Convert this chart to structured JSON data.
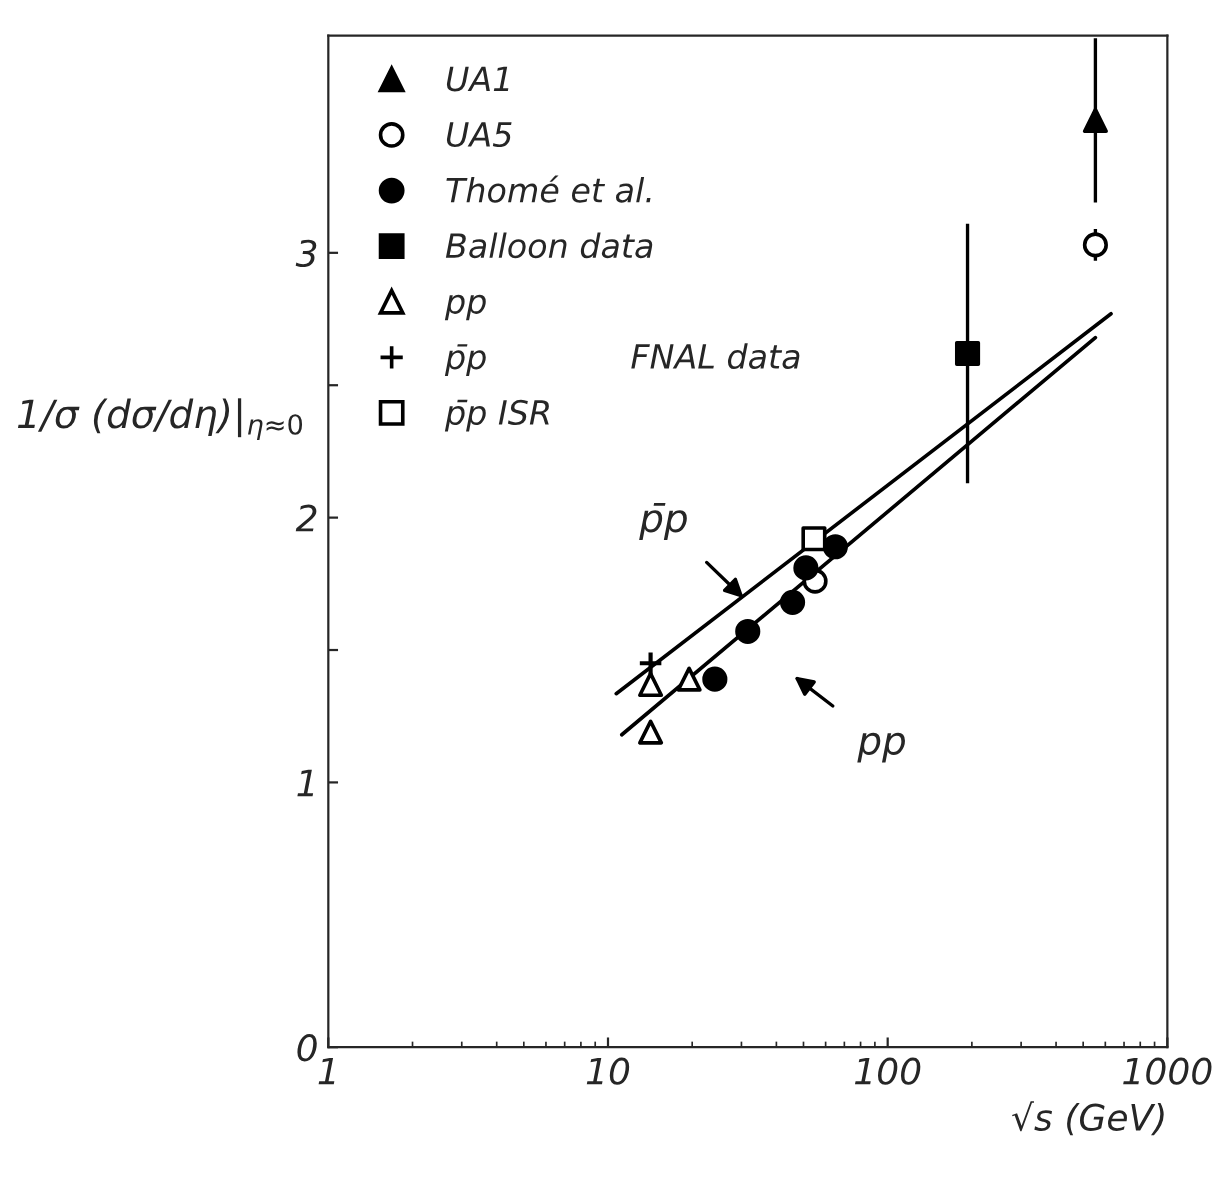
{
  "chart_data": {
    "type": "scatter",
    "xlabel": "√s (GeV)",
    "ylabel": "1/σ (dσ/dη)|$_{η≈0}$",
    "log": "x",
    "xlim": [
      1,
      1000
    ],
    "xticks": [
      1,
      10,
      100,
      1000
    ],
    "ylim": [
      0,
      3.82
    ],
    "yticks": [
      0,
      1,
      {
        "value": 1.5,
        "label": null
      },
      2,
      {
        "value": 2.5,
        "label": null
      },
      3
    ],
    "grid": false,
    "legend": "top left",
    "series": [
      {
        "name": "UA1",
        "color": "#000000",
        "marker": "triangle",
        "x": [
          553
        ],
        "values": [
          3.5
        ],
        "errors": [
          0.31
        ]
      },
      {
        "name": "UA5",
        "color": "#ffffff",
        "marker": "circle",
        "x": [
          55,
          553
        ],
        "values": [
          1.76,
          3.03
        ],
        "errors": [
          null,
          0.06
        ]
      },
      {
        "name": "Thomé et al.",
        "color": "#000000",
        "marker": "circle",
        "x": [
          24.1,
          31.6,
          45.7,
          51,
          65
        ],
        "values": [
          1.39,
          1.57,
          1.68,
          1.81,
          1.89
        ]
      },
      {
        "name": "Balloon data",
        "color": "#000000",
        "marker": "square",
        "x": [
          193
        ],
        "values": [
          2.62
        ],
        "errors": [
          0.49
        ]
      },
      {
        "name": "pp",
        "color": "#ffffff",
        "marker": "triangle",
        "x": [
          14.2,
          19.5,
          14.2
        ],
        "values": [
          1.37,
          1.39,
          1.19
        ]
      },
      {
        "name": "p̄p",
        "color": "#000000",
        "marker": "cross",
        "x": [
          14.2
        ],
        "values": [
          1.45
        ]
      },
      {
        "name": "p̄p ISR",
        "color": "#ffffff",
        "marker": "square",
        "x": [
          54.5
        ],
        "values": [
          1.92
        ]
      },
      {
        "type": "line",
        "color": "#000000",
        "marker": "none",
        "x": [
          10.7,
          629
        ],
        "values": [
          1.335,
          2.77
        ]
      },
      {
        "type": "line",
        "color": "#000000",
        "marker": "none",
        "x": [
          11.2,
          553
        ],
        "values": [
          1.18,
          2.68
        ]
      }
    ],
    "annotations": [
      "p̄p",
      "pp",
      "FNAL data"
    ]
  }
}
